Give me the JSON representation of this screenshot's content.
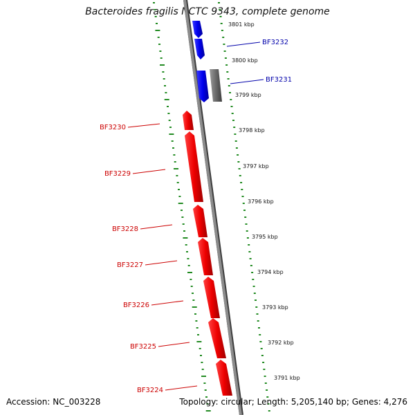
{
  "title": "Bacteroides fragilis NCTC 9343, complete genome",
  "footer": {
    "accession": "Accession: NC_003228",
    "topology": "Topology: circular; Length: 5,205,140 bp; Genes: 4,276"
  },
  "colors": {
    "forward_gene": "#0000ee",
    "reverse_gene": "#ee0000",
    "pseudo_gene": "#6b6b6b",
    "dna_backbone": "#8c8c8c",
    "tick_marks": "#228b22",
    "label_forward": "#0000aa",
    "label_reverse": "#cc0000"
  },
  "scale_labels": [
    "3801 kbp",
    "3800 kbp",
    "3799 kbp",
    "3798 kbp",
    "3797 kbp",
    "3796 kbp",
    "3795 kbp",
    "3794 kbp",
    "3793 kbp",
    "3792 kbp",
    "3791 kbp"
  ],
  "genes": [
    {
      "name": "BF3232",
      "strand": "forward",
      "labelled": true
    },
    {
      "name": "BF3231",
      "strand": "forward",
      "labelled": true
    },
    {
      "name": "",
      "strand": "forward",
      "labelled": false
    },
    {
      "name": "",
      "strand": "pseudo",
      "labelled": false
    },
    {
      "name": "BF3230",
      "strand": "reverse",
      "labelled": true
    },
    {
      "name": "BF3229",
      "strand": "reverse",
      "labelled": true
    },
    {
      "name": "BF3228",
      "strand": "reverse",
      "labelled": true
    },
    {
      "name": "BF3227",
      "strand": "reverse",
      "labelled": true
    },
    {
      "name": "BF3226",
      "strand": "reverse",
      "labelled": true
    },
    {
      "name": "BF3225",
      "strand": "reverse",
      "labelled": true
    },
    {
      "name": "BF3224",
      "strand": "reverse",
      "labelled": true
    }
  ]
}
